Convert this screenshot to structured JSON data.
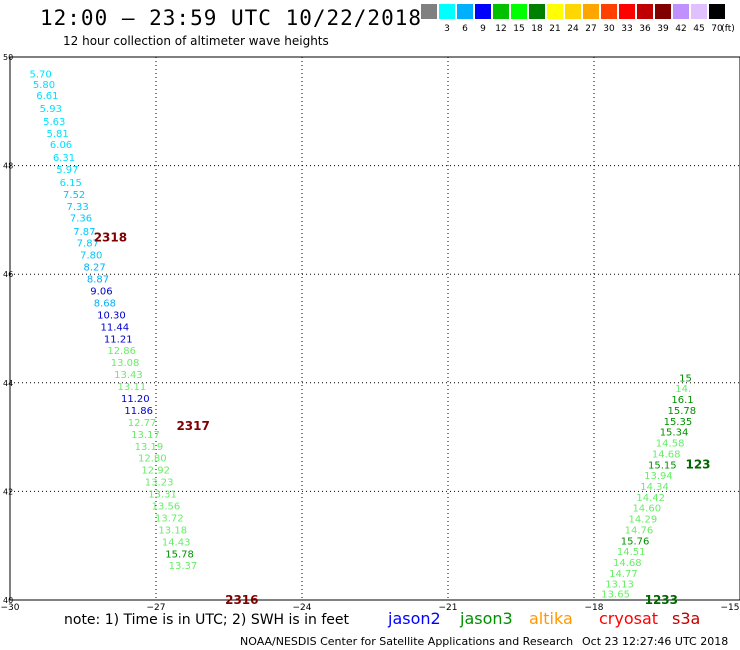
{
  "header": {
    "title": "12:00 — 23:59 UTC 10/22/2018",
    "subtitle": "12 hour collection of altimeter wave heights"
  },
  "color_scale": {
    "unit": "(ft)",
    "bins": [
      {
        "label": "",
        "color": "#808080"
      },
      {
        "label": "3",
        "color": "#00ffff"
      },
      {
        "label": "6",
        "color": "#00b0ff"
      },
      {
        "label": "9",
        "color": "#0000ff"
      },
      {
        "label": "12",
        "color": "#00c000"
      },
      {
        "label": "15",
        "color": "#00ff00"
      },
      {
        "label": "18",
        "color": "#008000"
      },
      {
        "label": "21",
        "color": "#ffff00"
      },
      {
        "label": "24",
        "color": "#ffd700"
      },
      {
        "label": "27",
        "color": "#ffa500"
      },
      {
        "label": "30",
        "color": "#ff4000"
      },
      {
        "label": "33",
        "color": "#ff0000"
      },
      {
        "label": "36",
        "color": "#c00000"
      },
      {
        "label": "39",
        "color": "#800000"
      },
      {
        "label": "42",
        "color": "#c090ff"
      },
      {
        "label": "45",
        "color": "#e0c0ff"
      },
      {
        "label": "70",
        "color": "#000000"
      }
    ]
  },
  "axes": {
    "lon_ticks": [
      -30,
      -27,
      -24,
      -21,
      -18,
      -15
    ],
    "lon_tick_labels": [
      "−30",
      "−27",
      "−24",
      "−21",
      "−18",
      "−15"
    ],
    "lat_ticks": [
      40,
      42,
      44,
      46,
      48,
      50
    ],
    "lat_tick_labels": [
      "40",
      "42",
      "44",
      "46",
      "48",
      "50"
    ]
  },
  "chart_data": {
    "type": "scatter",
    "xlim": [
      -30,
      -15
    ],
    "ylim": [
      40,
      50
    ],
    "grid": true,
    "tracks": [
      {
        "points": [
          {
            "lon": -29.6,
            "lat": 49.7,
            "v": "5.70",
            "color": "#00e0ff"
          },
          {
            "lon": -29.53,
            "lat": 49.5,
            "v": "5.80",
            "color": "#00e0ff"
          },
          {
            "lon": -29.46,
            "lat": 49.3,
            "v": "6.61",
            "color": "#00e0ff"
          },
          {
            "lon": -29.39,
            "lat": 49.06,
            "v": "5.93",
            "color": "#00e0ff"
          },
          {
            "lon": -29.32,
            "lat": 48.82,
            "v": "5.63",
            "color": "#00e0ff"
          },
          {
            "lon": -29.25,
            "lat": 48.6,
            "v": "5.81",
            "color": "#00e0ff"
          },
          {
            "lon": -29.18,
            "lat": 48.4,
            "v": "6.06",
            "color": "#00e0ff"
          },
          {
            "lon": -29.12,
            "lat": 48.16,
            "v": "6.31",
            "color": "#00e0ff"
          },
          {
            "lon": -29.05,
            "lat": 47.94,
            "v": "5.97",
            "color": "#00e0ff"
          },
          {
            "lon": -28.98,
            "lat": 47.7,
            "v": "6.15",
            "color": "#00e0ff"
          },
          {
            "lon": -28.91,
            "lat": 47.48,
            "v": "7.52",
            "color": "#00c8ff"
          },
          {
            "lon": -28.84,
            "lat": 47.26,
            "v": "7.33",
            "color": "#00c8ff"
          },
          {
            "lon": -28.77,
            "lat": 47.04,
            "v": "7.36",
            "color": "#00c8ff"
          },
          {
            "lon": -28.7,
            "lat": 46.8,
            "v": "7.87",
            "color": "#00c8ff"
          },
          {
            "lon": -28.63,
            "lat": 46.58,
            "v": "7.87",
            "color": "#00c8ff"
          },
          {
            "lon": -28.56,
            "lat": 46.36,
            "v": "7.80",
            "color": "#00c8ff"
          },
          {
            "lon": -28.49,
            "lat": 46.14,
            "v": "8.27",
            "color": "#00b0ff"
          },
          {
            "lon": -28.42,
            "lat": 45.92,
            "v": "8.87",
            "color": "#00b0ff"
          },
          {
            "lon": -28.35,
            "lat": 45.7,
            "v": "9.06",
            "color": "#0000cc"
          },
          {
            "lon": -28.28,
            "lat": 45.48,
            "v": "8.68",
            "color": "#00b0ff"
          },
          {
            "lon": -28.21,
            "lat": 45.26,
            "v": "10.30",
            "color": "#0000cc"
          },
          {
            "lon": -28.14,
            "lat": 45.04,
            "v": "11.44",
            "color": "#0000cc"
          },
          {
            "lon": -28.07,
            "lat": 44.82,
            "v": "11.21",
            "color": "#0000cc"
          },
          {
            "lon": -28.0,
            "lat": 44.6,
            "v": "12.86",
            "color": "#66ee66"
          },
          {
            "lon": -27.93,
            "lat": 44.38,
            "v": "13.08",
            "color": "#66ee66"
          },
          {
            "lon": -27.86,
            "lat": 44.16,
            "v": "13.43",
            "color": "#66ee66"
          },
          {
            "lon": -27.79,
            "lat": 43.94,
            "v": "13.11",
            "color": "#66ee66"
          },
          {
            "lon": -27.72,
            "lat": 43.72,
            "v": "11.20",
            "color": "#0000cc"
          },
          {
            "lon": -27.65,
            "lat": 43.5,
            "v": "11.86",
            "color": "#0000cc"
          },
          {
            "lon": -27.58,
            "lat": 43.28,
            "v": "12.77",
            "color": "#66ee66"
          },
          {
            "lon": -27.51,
            "lat": 43.06,
            "v": "13.17",
            "color": "#66ee66"
          },
          {
            "lon": -27.44,
            "lat": 42.84,
            "v": "13.19",
            "color": "#66ee66"
          },
          {
            "lon": -27.37,
            "lat": 42.62,
            "v": "12.80",
            "color": "#66ee66"
          },
          {
            "lon": -27.3,
            "lat": 42.4,
            "v": "12.92",
            "color": "#66ee66"
          },
          {
            "lon": -27.23,
            "lat": 42.18,
            "v": "13.23",
            "color": "#66ee66"
          },
          {
            "lon": -27.16,
            "lat": 41.96,
            "v": "13.31",
            "color": "#66ee66"
          },
          {
            "lon": -27.09,
            "lat": 41.74,
            "v": "13.56",
            "color": "#66ee66"
          },
          {
            "lon": -27.02,
            "lat": 41.52,
            "v": "13.72",
            "color": "#66ee66"
          },
          {
            "lon": -26.95,
            "lat": 41.3,
            "v": "13.18",
            "color": "#66ee66"
          },
          {
            "lon": -26.88,
            "lat": 41.08,
            "v": "14.43",
            "color": "#66ee66"
          },
          {
            "lon": -26.81,
            "lat": 40.86,
            "v": "15.78",
            "color": "#009000"
          },
          {
            "lon": -26.74,
            "lat": 40.64,
            "v": "13.37",
            "color": "#66ee66"
          }
        ]
      },
      {
        "points": [
          {
            "lon": -17.85,
            "lat": 40.12,
            "v": "13.65",
            "color": "#66ee66"
          },
          {
            "lon": -17.77,
            "lat": 40.3,
            "v": "13.13",
            "color": "#66ee66"
          },
          {
            "lon": -17.69,
            "lat": 40.5,
            "v": "14.77",
            "color": "#66ee66"
          },
          {
            "lon": -17.61,
            "lat": 40.7,
            "v": "14.68",
            "color": "#66ee66"
          },
          {
            "lon": -17.53,
            "lat": 40.9,
            "v": "14.51",
            "color": "#66ee66"
          },
          {
            "lon": -17.45,
            "lat": 41.1,
            "v": "15.76",
            "color": "#009000"
          },
          {
            "lon": -17.37,
            "lat": 41.3,
            "v": "14.76",
            "color": "#66ee66"
          },
          {
            "lon": -17.29,
            "lat": 41.5,
            "v": "14.29",
            "color": "#66ee66"
          },
          {
            "lon": -17.21,
            "lat": 41.7,
            "v": "14.60",
            "color": "#66ee66"
          },
          {
            "lon": -17.13,
            "lat": 41.9,
            "v": "14.42",
            "color": "#66ee66"
          },
          {
            "lon": -17.05,
            "lat": 42.1,
            "v": "14.34",
            "color": "#66ee66"
          },
          {
            "lon": -16.97,
            "lat": 42.3,
            "v": "13.94",
            "color": "#66ee66"
          },
          {
            "lon": -16.89,
            "lat": 42.5,
            "v": "15.15",
            "color": "#009000"
          },
          {
            "lon": -16.81,
            "lat": 42.7,
            "v": "14.68",
            "color": "#66ee66"
          },
          {
            "lon": -16.73,
            "lat": 42.9,
            "v": "14.58",
            "color": "#66ee66"
          },
          {
            "lon": -16.65,
            "lat": 43.1,
            "v": "15.34",
            "color": "#009000"
          },
          {
            "lon": -16.57,
            "lat": 43.3,
            "v": "15.35",
            "color": "#009000"
          },
          {
            "lon": -16.49,
            "lat": 43.5,
            "v": "15.78",
            "color": "#009000"
          },
          {
            "lon": -16.41,
            "lat": 43.7,
            "v": "16.1",
            "color": "#009000"
          },
          {
            "lon": -16.33,
            "lat": 43.9,
            "v": "14.",
            "color": "#66ee66"
          },
          {
            "lon": -16.25,
            "lat": 44.1,
            "v": "15",
            "color": "#009000"
          }
        ]
      }
    ],
    "time_labels": [
      {
        "lon": -28.28,
        "lat": 46.68,
        "v": "2318",
        "color": "#800000"
      },
      {
        "lon": -26.58,
        "lat": 43.2,
        "v": "2317",
        "color": "#800000"
      },
      {
        "lon": -25.58,
        "lat": 40.0,
        "v": "2316",
        "color": "#800000"
      },
      {
        "lon": -16.12,
        "lat": 42.5,
        "v": "123",
        "color": "#006400"
      },
      {
        "lon": -16.96,
        "lat": 40.0,
        "v": "1233",
        "color": "#006400"
      }
    ]
  },
  "footer": {
    "note": "note: 1) Time is in UTC; 2) SWH is in feet",
    "satellites": [
      {
        "label": "jason2",
        "color": "#0000ff"
      },
      {
        "label": "jason3",
        "color": "#009000"
      },
      {
        "label": "altika",
        "color": "#ff9900"
      },
      {
        "label": "cryosat",
        "color": "#ff0000"
      },
      {
        "label": "s3a",
        "color": "#c00000"
      }
    ],
    "credit": "NOAA/NESDIS Center for Satellite Applications and Research",
    "timestamp": "Oct 23 12:27:46 UTC 2018"
  }
}
